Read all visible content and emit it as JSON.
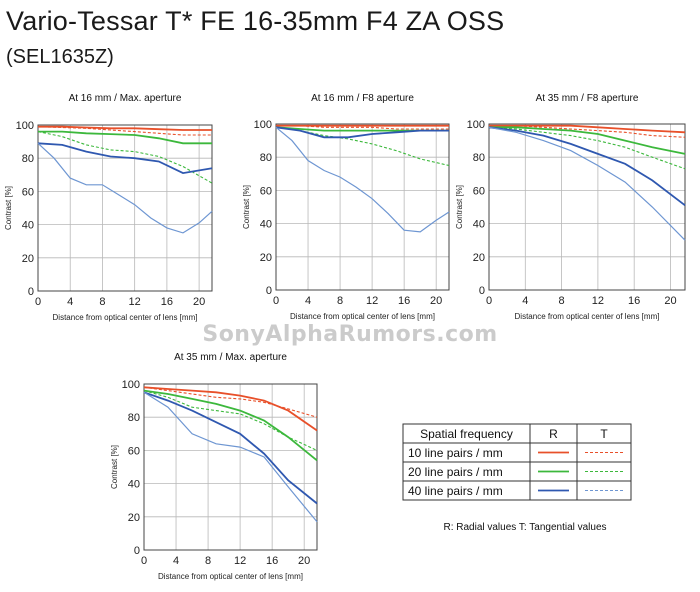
{
  "title": "Vario-Tessar T* FE 16-35mm F4 ZA OSS",
  "subtitle": "(SEL1635Z)",
  "watermark": "SonyAlphaRumors.com",
  "colors": {
    "10": "#e8502a",
    "20": "#3cb83c",
    "40": "#2f58b0",
    "40_tangential": "#6e96d2"
  },
  "legend": {
    "header": "Spatial frequency",
    "col_r": "R",
    "col_t": "T",
    "rows": [
      "10 line pairs / mm",
      "20 line pairs / mm",
      "40 line pairs / mm"
    ],
    "note": "R: Radial values  T: Tangential values"
  },
  "chart_data": [
    {
      "type": "line",
      "title": "At 16 mm / Max. aperture",
      "xlabel": "Distance from optical center of lens [mm]",
      "ylabel": "Contrast [%]",
      "xlim": [
        0,
        21.6
      ],
      "ylim": [
        0,
        100
      ],
      "xticks": [
        0,
        4,
        8,
        12,
        16,
        20
      ],
      "yticks": [
        0,
        20,
        40,
        60,
        80,
        100
      ],
      "series": [
        {
          "freq": "10",
          "kind": "R",
          "x": [
            0,
            3,
            6,
            9,
            12,
            15,
            18,
            21.6
          ],
          "y": [
            99,
            99,
            98.5,
            98,
            98,
            97.5,
            97,
            97
          ]
        },
        {
          "freq": "10",
          "kind": "T",
          "x": [
            0,
            3,
            6,
            9,
            12,
            15,
            18,
            21.6
          ],
          "y": [
            99,
            98.5,
            98,
            97,
            96,
            95,
            94,
            94
          ]
        },
        {
          "freq": "20",
          "kind": "R",
          "x": [
            0,
            3,
            6,
            9,
            12,
            15,
            18,
            21.6
          ],
          "y": [
            96,
            96,
            95,
            94.5,
            94,
            92,
            89,
            89
          ]
        },
        {
          "freq": "20",
          "kind": "T",
          "x": [
            0,
            3,
            6,
            9,
            12,
            15,
            18,
            21.6
          ],
          "y": [
            96,
            93,
            88,
            85,
            84,
            81,
            75,
            65
          ]
        },
        {
          "freq": "40",
          "kind": "R",
          "x": [
            0,
            3,
            6,
            9,
            12,
            15,
            18,
            21.6
          ],
          "y": [
            89,
            88,
            84,
            81,
            80,
            78,
            71,
            74
          ]
        },
        {
          "freq": "40",
          "kind": "T",
          "x": [
            0,
            2,
            4,
            6,
            8,
            10,
            12,
            14,
            16,
            18,
            20,
            21.6
          ],
          "y": [
            89,
            80,
            68,
            64,
            64,
            58,
            52,
            44,
            38,
            35,
            41,
            48
          ]
        }
      ]
    },
    {
      "type": "line",
      "title": "At 16 mm / F8 aperture",
      "xlabel": "Distance from optical center of lens [mm]",
      "ylabel": "Contrast [%]",
      "xlim": [
        0,
        21.6
      ],
      "ylim": [
        0,
        100
      ],
      "xticks": [
        0,
        4,
        8,
        12,
        16,
        20
      ],
      "yticks": [
        0,
        20,
        40,
        60,
        80,
        100
      ],
      "series": [
        {
          "freq": "10",
          "kind": "R",
          "x": [
            0,
            3,
            6,
            9,
            12,
            15,
            18,
            21.6
          ],
          "y": [
            99,
            99,
            99,
            99,
            99,
            99,
            99,
            99
          ]
        },
        {
          "freq": "10",
          "kind": "T",
          "x": [
            0,
            3,
            6,
            9,
            12,
            15,
            18,
            21.6
          ],
          "y": [
            99,
            99,
            98,
            98,
            98,
            97,
            97,
            97
          ]
        },
        {
          "freq": "20",
          "kind": "R",
          "x": [
            0,
            3,
            6,
            9,
            12,
            15,
            18,
            21.6
          ],
          "y": [
            98,
            97,
            96,
            96,
            96,
            96,
            96,
            96
          ]
        },
        {
          "freq": "20",
          "kind": "T",
          "x": [
            0,
            3,
            6,
            9,
            12,
            15,
            18,
            21.6
          ],
          "y": [
            98,
            96,
            93,
            91,
            88,
            84,
            79,
            75
          ]
        },
        {
          "freq": "40",
          "kind": "R",
          "x": [
            0,
            3,
            6,
            9,
            12,
            15,
            18,
            21.6
          ],
          "y": [
            98,
            96,
            92,
            92,
            94,
            95,
            96,
            96
          ]
        },
        {
          "freq": "40",
          "kind": "T",
          "x": [
            0,
            2,
            4,
            6,
            8,
            10,
            12,
            14,
            16,
            18,
            20,
            21.6
          ],
          "y": [
            98,
            90,
            78,
            72,
            68,
            62,
            55,
            46,
            36,
            35,
            42,
            47
          ]
        }
      ]
    },
    {
      "type": "line",
      "title": "At 35 mm / F8 aperture",
      "xlabel": "Distance from optical center of lens [mm]",
      "ylabel": "Contrast [%]",
      "xlim": [
        0,
        21.6
      ],
      "ylim": [
        0,
        100
      ],
      "xticks": [
        0,
        4,
        8,
        12,
        16,
        20
      ],
      "yticks": [
        0,
        20,
        40,
        60,
        80,
        100
      ],
      "series": [
        {
          "freq": "10",
          "kind": "R",
          "x": [
            0,
            3,
            6,
            9,
            12,
            15,
            18,
            21.6
          ],
          "y": [
            99,
            99,
            99,
            99,
            98,
            97,
            96,
            95
          ]
        },
        {
          "freq": "10",
          "kind": "T",
          "x": [
            0,
            3,
            6,
            9,
            12,
            15,
            18,
            21.6
          ],
          "y": [
            99,
            99,
            98,
            97,
            96,
            95,
            93,
            92
          ]
        },
        {
          "freq": "20",
          "kind": "R",
          "x": [
            0,
            3,
            6,
            9,
            12,
            15,
            18,
            21.6
          ],
          "y": [
            98,
            98,
            97,
            96,
            94,
            90,
            86,
            82
          ]
        },
        {
          "freq": "20",
          "kind": "T",
          "x": [
            0,
            3,
            6,
            9,
            12,
            15,
            18,
            21.6
          ],
          "y": [
            98,
            97,
            95,
            93,
            90,
            86,
            80,
            73
          ]
        },
        {
          "freq": "40",
          "kind": "R",
          "x": [
            0,
            3,
            6,
            9,
            12,
            15,
            18,
            21.6
          ],
          "y": [
            98,
            96,
            93,
            88,
            82,
            76,
            66,
            51
          ]
        },
        {
          "freq": "40",
          "kind": "T",
          "x": [
            0,
            3,
            6,
            9,
            12,
            15,
            18,
            21.6
          ],
          "y": [
            98,
            95,
            90,
            84,
            75,
            65,
            50,
            30
          ]
        }
      ]
    },
    {
      "type": "line",
      "title": "At 35 mm / Max. aperture",
      "xlabel": "Distance from optical center of lens [mm]",
      "ylabel": "Contrast [%]",
      "xlim": [
        0,
        21.6
      ],
      "ylim": [
        0,
        100
      ],
      "xticks": [
        0,
        4,
        8,
        12,
        16,
        20
      ],
      "yticks": [
        0,
        20,
        40,
        60,
        80,
        100
      ],
      "series": [
        {
          "freq": "10",
          "kind": "R",
          "x": [
            0,
            3,
            6,
            9,
            12,
            15,
            18,
            21.6
          ],
          "y": [
            98,
            97,
            96,
            95,
            93,
            90,
            84,
            72
          ]
        },
        {
          "freq": "10",
          "kind": "T",
          "x": [
            0,
            3,
            6,
            9,
            12,
            15,
            18,
            21.6
          ],
          "y": [
            98,
            96,
            94,
            92,
            91,
            89,
            85,
            80
          ]
        },
        {
          "freq": "20",
          "kind": "R",
          "x": [
            0,
            3,
            6,
            9,
            12,
            15,
            18,
            21.6
          ],
          "y": [
            96,
            94,
            91,
            88,
            84,
            78,
            68,
            54
          ]
        },
        {
          "freq": "20",
          "kind": "T",
          "x": [
            0,
            3,
            6,
            9,
            12,
            15,
            18,
            21.6
          ],
          "y": [
            96,
            92,
            86,
            84,
            82,
            76,
            68,
            60
          ]
        },
        {
          "freq": "40",
          "kind": "R",
          "x": [
            0,
            3,
            6,
            9,
            12,
            15,
            18,
            21.6
          ],
          "y": [
            95,
            90,
            84,
            77,
            70,
            58,
            42,
            28
          ]
        },
        {
          "freq": "40",
          "kind": "T",
          "x": [
            0,
            3,
            6,
            9,
            12,
            15,
            18,
            21.6
          ],
          "y": [
            95,
            86,
            70,
            64,
            62,
            56,
            38,
            17
          ]
        }
      ]
    }
  ]
}
